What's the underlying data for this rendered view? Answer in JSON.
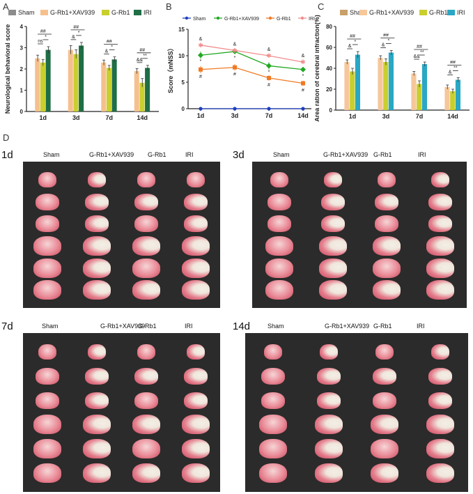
{
  "panels": {
    "A": "A",
    "B": "B",
    "C": "C",
    "D": "D"
  },
  "colors": {
    "sham": "#8c8c8c",
    "xav": "#f5c08e",
    "grb1": "#c9cf2d",
    "iri": "#1f6e45",
    "b_sham": "#1f3fbf",
    "b_xav": "#22a822",
    "b_grb1": "#f07a24",
    "b_iri": "#f28c8c",
    "c_sham": "#c8a06a",
    "c_xav": "#f6c79a",
    "c_grb1": "#c9cf2d",
    "c_iri": "#2aa7c4",
    "brain_bg": "#2b2b2b"
  },
  "chart_data": [
    {
      "id": "A",
      "type": "bar",
      "ylabel": "Neurological behavioral score",
      "ylim": [
        0,
        4
      ],
      "yticks": [
        0,
        1,
        2,
        3,
        4
      ],
      "categories": [
        "1d",
        "3d",
        "7d",
        "14d"
      ],
      "legend": [
        "Sham",
        "G-Rb1+XAV939",
        "G-Rb1",
        "IRI"
      ],
      "series": [
        {
          "name": "Sham",
          "values": [
            0,
            0,
            0,
            0
          ]
        },
        {
          "name": "G-Rb1+XAV939",
          "values": [
            2.5,
            2.9,
            2.3,
            1.9
          ]
        },
        {
          "name": "G-Rb1",
          "values": [
            2.3,
            2.7,
            2.05,
            1.35
          ]
        },
        {
          "name": "IRI",
          "values": [
            2.9,
            3.1,
            2.45,
            2.05
          ]
        }
      ],
      "errors": [
        [
          0,
          0,
          0,
          0
        ],
        [
          0.15,
          0.2,
          0.12,
          0.12
        ],
        [
          0.15,
          0.2,
          0.12,
          0.2
        ],
        [
          0.15,
          0.15,
          0.12,
          0.12
        ]
      ],
      "annotations": [
        {
          "cat": 0,
          "texts": [
            "ns",
            "*",
            "##"
          ]
        },
        {
          "cat": 1,
          "texts": [
            "&",
            "*",
            "##"
          ]
        },
        {
          "cat": 2,
          "texts": [
            "&",
            "*",
            "##"
          ]
        },
        {
          "cat": 3,
          "texts": [
            "&&",
            "**",
            "##"
          ]
        }
      ]
    },
    {
      "id": "B",
      "type": "line",
      "ylabel": "Score（mNSS）",
      "ylim": [
        0,
        15
      ],
      "yticks": [
        0,
        5,
        10,
        15
      ],
      "categories": [
        "1d",
        "3d",
        "7d",
        "14d"
      ],
      "legend": [
        "Sham",
        "G-Rb1+XAV939",
        "G-Rb1",
        "IRI"
      ],
      "series": [
        {
          "name": "Sham",
          "values": [
            0,
            0,
            0,
            0
          ]
        },
        {
          "name": "G-Rb1+XAV939",
          "values": [
            10.1,
            10.8,
            8.1,
            7.4
          ]
        },
        {
          "name": "G-Rb1",
          "values": [
            7.4,
            7.8,
            5.8,
            4.8
          ]
        },
        {
          "name": "IRI",
          "values": [
            12.0,
            11.0,
            10.0,
            8.8
          ]
        }
      ],
      "errors": [
        [
          0,
          0,
          0,
          0
        ],
        [
          0.7,
          0.4,
          0.7,
          0.5
        ],
        [
          0.7,
          0.6,
          0.5,
          0.5
        ],
        [
          0.3,
          0.3,
          0.3,
          0.3
        ]
      ],
      "annotations": [
        {
          "cat": 0,
          "texts": [
            "&",
            "*",
            "#"
          ]
        },
        {
          "cat": 1,
          "texts": [
            "&",
            "*",
            "#"
          ]
        },
        {
          "cat": 2,
          "texts": [
            "&",
            "*",
            "#"
          ]
        },
        {
          "cat": 3,
          "texts": [
            "&",
            "*",
            "#"
          ]
        }
      ]
    },
    {
      "id": "C",
      "type": "bar",
      "ylabel": "Area ration of cerebral infraction(%)",
      "ylim": [
        0,
        80
      ],
      "yticks": [
        0,
        20,
        40,
        60,
        80
      ],
      "categories": [
        "1d",
        "3d",
        "7d",
        "14d"
      ],
      "legend": [
        "Sham",
        "G-Rb1+XAV939",
        "G-Rb1",
        "IRI"
      ],
      "series": [
        {
          "name": "Sham",
          "values": [
            0,
            0,
            0,
            0
          ]
        },
        {
          "name": "G-Rb1+XAV939",
          "values": [
            46,
            50,
            35,
            22
          ]
        },
        {
          "name": "G-Rb1",
          "values": [
            37,
            46,
            25,
            18
          ]
        },
        {
          "name": "IRI",
          "values": [
            53,
            55,
            44,
            29
          ]
        }
      ],
      "errors": [
        [
          0,
          0,
          0,
          0
        ],
        [
          2,
          2,
          2,
          2
        ],
        [
          3,
          3,
          3,
          2
        ],
        [
          3,
          2,
          2,
          2
        ]
      ],
      "annotations": [
        {
          "cat": 0,
          "texts": [
            "&",
            "*",
            "##"
          ]
        },
        {
          "cat": 1,
          "texts": [
            "&",
            "*",
            "##"
          ]
        },
        {
          "cat": 2,
          "texts": [
            "&&",
            "**",
            "##"
          ]
        },
        {
          "cat": 3,
          "texts": [
            "&",
            "**",
            "##"
          ]
        }
      ]
    }
  ],
  "brain_panels": [
    {
      "time": "1d",
      "groups": [
        "Sham",
        "G-Rb1+XAV939",
        "G-Rb1",
        "IRI"
      ]
    },
    {
      "time": "3d",
      "groups": [
        "Sham",
        "G-Rb1+XAV939",
        "G-Rb1",
        "IRI"
      ]
    },
    {
      "time": "7d",
      "groups": [
        "Sham",
        "G-Rb1+XAV939",
        "G-Rb1",
        "IRI"
      ]
    },
    {
      "time": "14d",
      "groups": [
        "Sham",
        "G-Rb1+XAV939",
        "G-Rb1",
        "IRI"
      ]
    }
  ]
}
